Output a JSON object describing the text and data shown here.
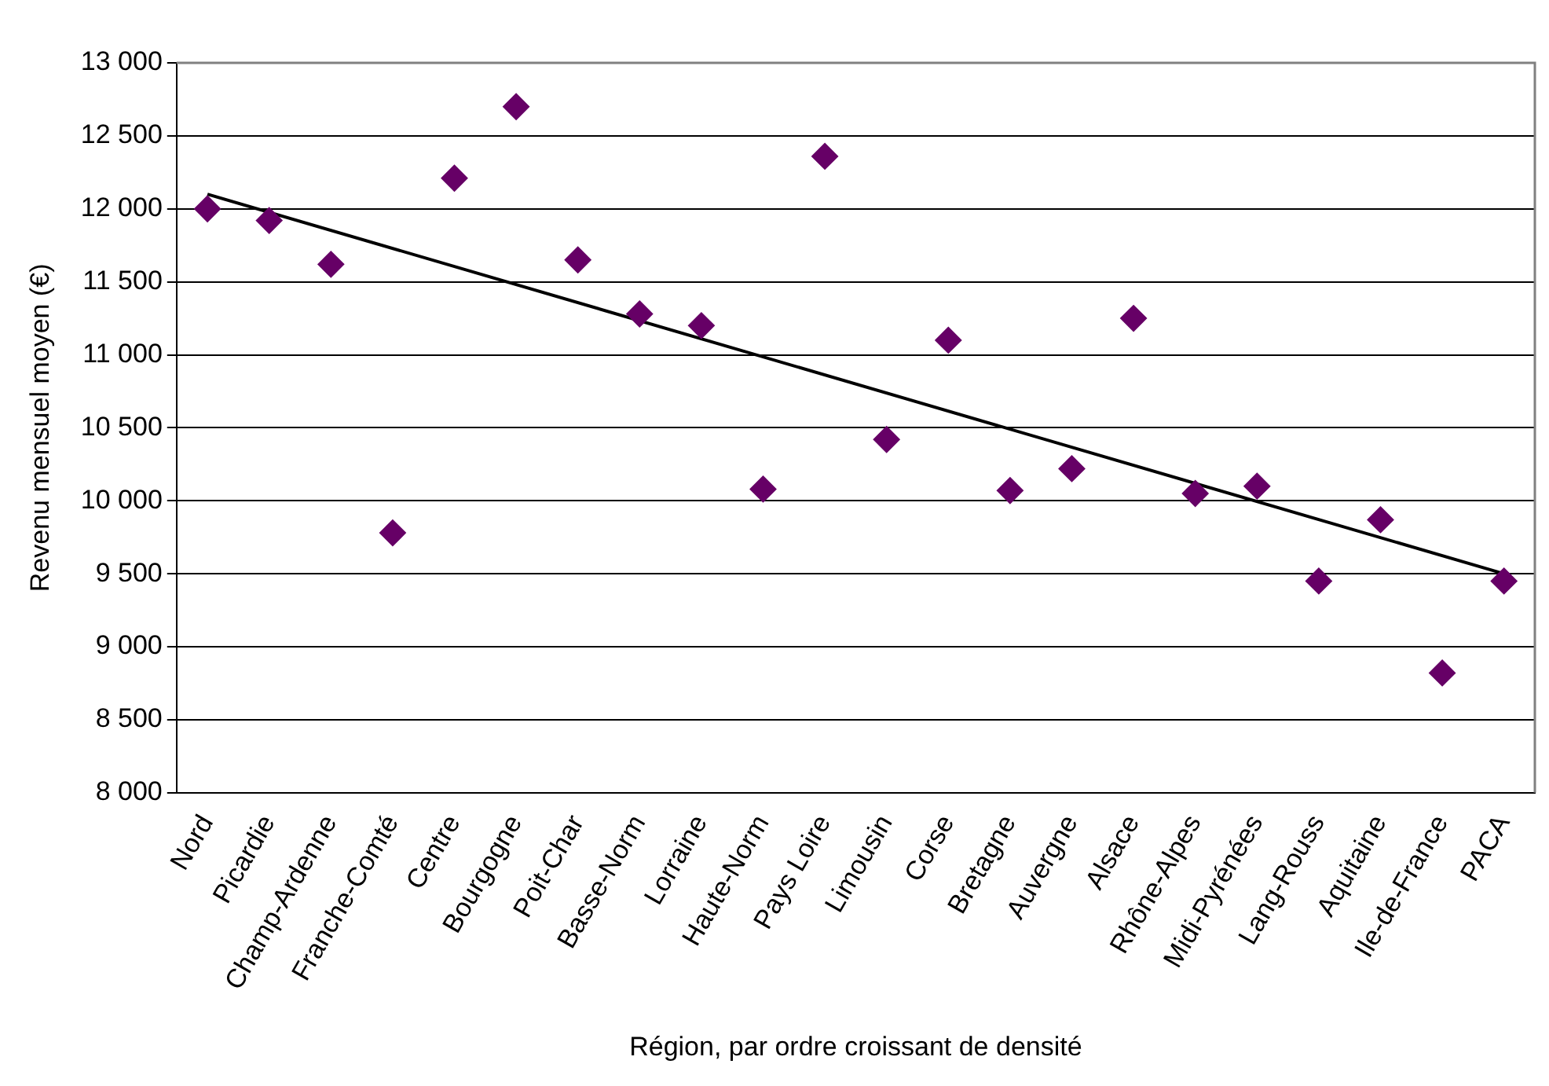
{
  "chart_data": {
    "type": "scatter",
    "xlabel": "Région, par ordre croissant de densité",
    "ylabel": "Revenu mensuel moyen (€)",
    "categories": [
      "Nord",
      "Picardie",
      "Champ-Ardenne",
      "Franche-Comté",
      "Centre",
      "Bourgogne",
      "Poit-Char",
      "Basse-Norm",
      "Lorraine",
      "Haute-Norm",
      "Pays Loire",
      "Limousin",
      "Corse",
      "Bretagne",
      "Auvergne",
      "Alsace",
      "Rhône-Alpes",
      "Midi-Pyrénées",
      "Lang-Rouss",
      "Aquitaine",
      "Ile-de-France",
      "PACA"
    ],
    "series": [
      {
        "color": "#660066",
        "marker": "diamond",
        "values": [
          12000,
          11920,
          11620,
          9780,
          12210,
          12700,
          11650,
          11280,
          11200,
          10080,
          12360,
          10420,
          11100,
          10070,
          10220,
          11250,
          10050,
          10100,
          9450,
          9870,
          8820,
          9450
        ]
      },
      {
        "type": "line",
        "color": "#000000",
        "marker": "none",
        "x": [
          "Nord",
          "PACA"
        ],
        "values": [
          12100,
          9500
        ]
      }
    ],
    "ylim": [
      8000,
      13000
    ],
    "yticks": [
      {
        "value": 8000,
        "label": "8 000"
      },
      {
        "value": 8500,
        "label": "8 500"
      },
      {
        "value": 9000,
        "label": "9 000"
      },
      {
        "value": 9500,
        "label": "9 500"
      },
      {
        "value": 10000,
        "label": "10 000"
      },
      {
        "value": 10500,
        "label": "10 500"
      },
      {
        "value": 11000,
        "label": "11 000"
      },
      {
        "value": 11500,
        "label": "11 500"
      },
      {
        "value": 12000,
        "label": "12 000"
      },
      {
        "value": 12500,
        "label": "12 500"
      },
      {
        "value": 13000,
        "label": "13 000"
      }
    ],
    "grid": "y",
    "legend": false
  }
}
